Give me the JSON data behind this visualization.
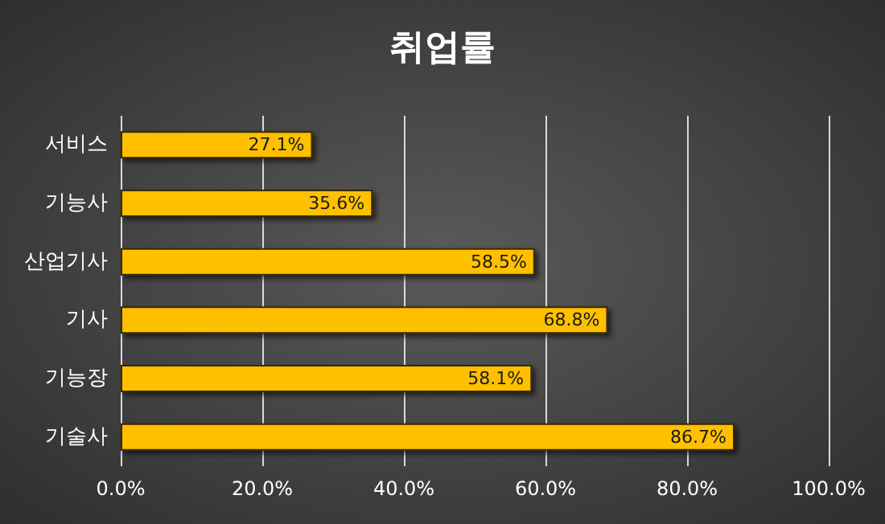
{
  "chart_data": {
    "type": "bar",
    "title": "취업률",
    "orientation": "horizontal",
    "categories": [
      "서비스",
      "기능사",
      "산업기사",
      "기사",
      "기능장",
      "기술사"
    ],
    "values": [
      27.1,
      35.6,
      58.5,
      68.8,
      58.1,
      86.7
    ],
    "value_labels": [
      "27.1%",
      "35.6%",
      "58.5%",
      "68.8%",
      "58.1%",
      "86.7%"
    ],
    "color": "#ffc000",
    "xlim": [
      0,
      100
    ],
    "xticks": [
      {
        "value": 0,
        "label": "0.0%"
      },
      {
        "value": 20,
        "label": "20.0%"
      },
      {
        "value": 40,
        "label": "40.0%"
      },
      {
        "value": 60,
        "label": "60.0%"
      },
      {
        "value": 80,
        "label": "80.0%"
      },
      {
        "value": 100,
        "label": "100.0%"
      }
    ],
    "grid": "x"
  }
}
